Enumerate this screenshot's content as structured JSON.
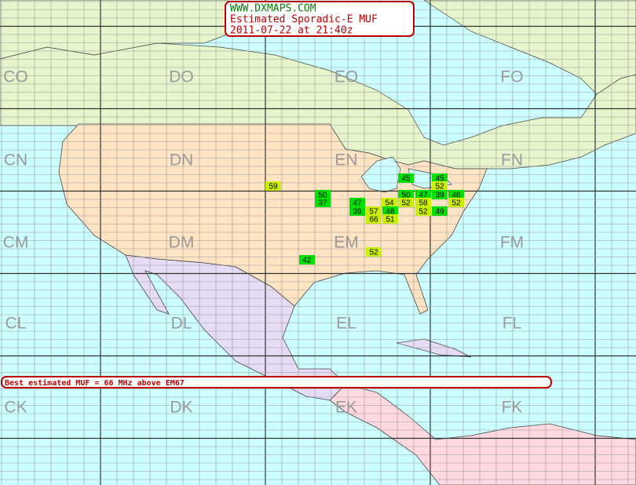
{
  "header": {
    "lines": [
      "WWW.DXMAPS.COM",
      "Estimated Sporadic-E MUF",
      "2011-07-22 at 21:40z"
    ]
  },
  "grid_labels": [
    "CO",
    "DO",
    "EO",
    "FO",
    "CN",
    "DN",
    "EN",
    "FN",
    "CM",
    "DM",
    "EM",
    "FM",
    "CL",
    "DL",
    "EL",
    "FL",
    "CK",
    "DK",
    "EK",
    "FK"
  ],
  "mufs": [
    {
      "value": 45,
      "color": "#00e000"
    },
    {
      "value": 45,
      "color": "#00e000"
    },
    {
      "value": 52,
      "color": "#c8f000"
    },
    {
      "value": 59,
      "color": "#c8f000"
    },
    {
      "value": 50,
      "color": "#00e000"
    },
    {
      "value": 37,
      "color": "#00e000"
    },
    {
      "value": 47,
      "color": "#00e000"
    },
    {
      "value": 39,
      "color": "#00e000"
    },
    {
      "value": 57,
      "color": "#c8f000"
    },
    {
      "value": 54,
      "color": "#c8f000"
    },
    {
      "value": 48,
      "color": "#00e000"
    },
    {
      "value": 66,
      "color": "#c8f000"
    },
    {
      "value": 51,
      "color": "#c8f000"
    },
    {
      "value": 50,
      "color": "#00e000"
    },
    {
      "value": 52,
      "color": "#c8f000"
    },
    {
      "value": 47,
      "color": "#00e000"
    },
    {
      "value": 58,
      "color": "#c8f000"
    },
    {
      "value": 52,
      "color": "#c8f000"
    },
    {
      "value": 39,
      "color": "#00e000"
    },
    {
      "value": 46,
      "color": "#00e000"
    },
    {
      "value": 52,
      "color": "#c8f000"
    },
    {
      "value": 49,
      "color": "#00e000"
    },
    {
      "value": 42,
      "color": "#00e000"
    },
    {
      "value": 52,
      "color": "#c8f000"
    }
  ],
  "banner": "Best estimated MUF = 66 MHz above EM67"
}
